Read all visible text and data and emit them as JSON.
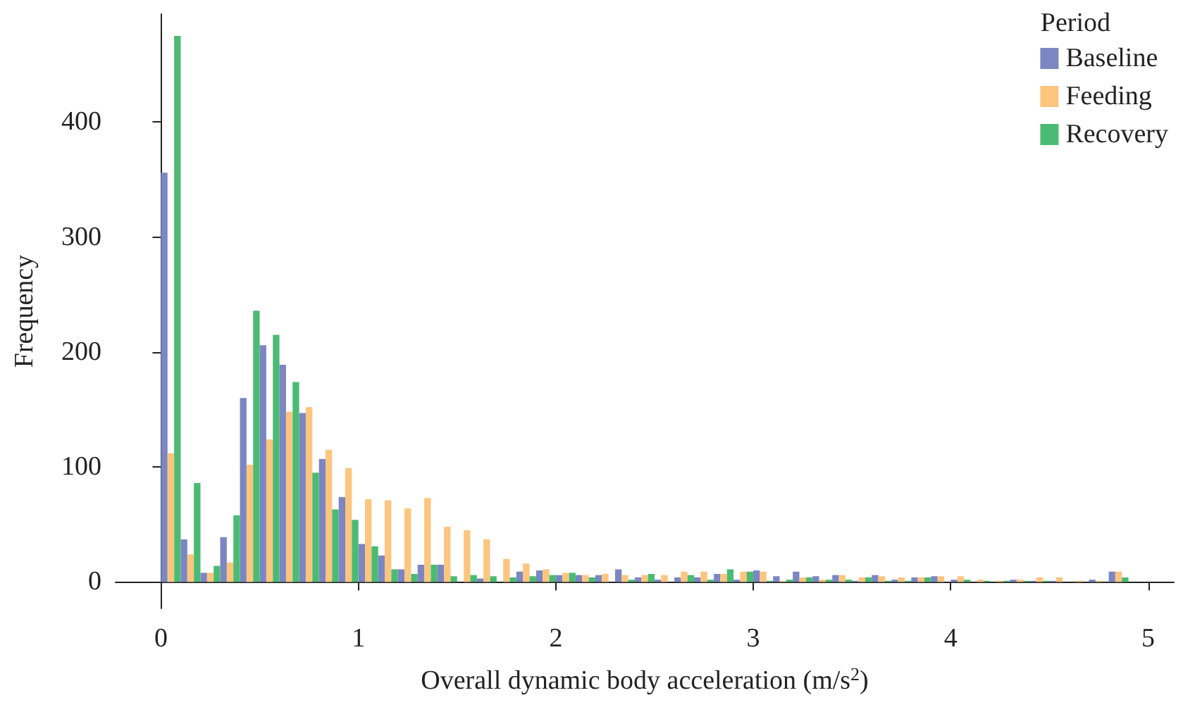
{
  "chart_data": {
    "type": "histogram",
    "xlabel": "Overall dynamic body acceleration (m/s$^{2}$)",
    "ylabel": "Frequency",
    "legend_title": "Period",
    "bins": [
      0,
      0.1,
      0.2,
      0.3,
      0.4,
      0.5,
      0.6,
      0.7,
      0.8,
      0.9,
      1,
      1.1,
      1.2,
      1.3,
      1.4,
      1.5,
      1.6,
      1.7,
      1.8,
      1.9,
      2,
      2.1,
      2.2,
      2.3,
      2.4,
      2.5,
      2.6,
      2.7,
      2.8,
      2.9,
      3,
      3.1,
      3.2,
      3.3,
      3.4,
      3.5,
      3.6,
      3.7,
      3.8,
      3.9,
      4,
      4.1,
      4.2,
      4.3,
      4.4,
      4.5,
      4.6,
      4.7,
      4.8,
      4.9
    ],
    "series": [
      {
        "name": "Baseline",
        "color": "#7b86c2",
        "values": [
          356,
          37,
          8,
          39,
          160,
          206,
          189,
          147,
          107,
          74,
          33,
          23,
          11,
          15,
          15,
          0,
          3,
          0,
          9,
          10,
          6,
          6,
          6,
          11,
          4,
          2,
          4,
          4,
          7,
          2,
          10,
          5,
          9,
          5,
          6,
          1,
          6,
          2,
          4,
          5,
          2,
          0,
          0,
          2,
          1,
          1,
          0,
          2,
          9
        ]
      },
      {
        "name": "Feeding",
        "color": "#fdc57e",
        "values": [
          112,
          24,
          8,
          17,
          102,
          124,
          148,
          152,
          115,
          99,
          72,
          71,
          64,
          73,
          48,
          45,
          37,
          20,
          16,
          11,
          8,
          6,
          7,
          6,
          6,
          6,
          9,
          9,
          7,
          9,
          9,
          1,
          4,
          2,
          6,
          4,
          5,
          4,
          4,
          5,
          5,
          2,
          1,
          2,
          4,
          4,
          1,
          1,
          9
        ]
      },
      {
        "name": "Recovery",
        "color": "#4bbb73",
        "values": [
          475,
          86,
          14,
          58,
          236,
          215,
          174,
          95,
          63,
          54,
          31,
          11,
          7,
          15,
          5,
          6,
          5,
          4,
          5,
          6,
          8,
          4,
          0,
          2,
          7,
          0,
          6,
          2,
          11,
          9,
          1,
          2,
          4,
          2,
          2,
          4,
          1,
          1,
          4,
          0,
          2,
          1,
          1,
          1,
          1,
          0,
          0,
          0,
          4
        ]
      }
    ],
    "xlim": [
      -0.23,
      5.13
    ],
    "ylim": [
      -23,
      494
    ],
    "xticks": [
      0,
      1,
      2,
      3,
      4,
      5
    ],
    "yticks": [
      0,
      100,
      200,
      300,
      400
    ],
    "grid": false,
    "legend": "top right"
  }
}
